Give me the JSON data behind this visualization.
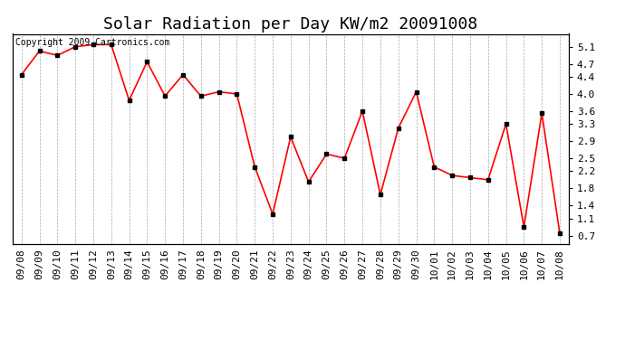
{
  "title": "Solar Radiation per Day KW/m2 20091008",
  "copyright_text": "Copyright 2009 Cartronics.com",
  "dates": [
    "09/08",
    "09/09",
    "09/10",
    "09/11",
    "09/12",
    "09/13",
    "09/14",
    "09/15",
    "09/16",
    "09/17",
    "09/18",
    "09/19",
    "09/20",
    "09/21",
    "09/22",
    "09/23",
    "09/24",
    "09/25",
    "09/26",
    "09/27",
    "09/28",
    "09/29",
    "09/30",
    "10/01",
    "10/02",
    "10/03",
    "10/04",
    "10/05",
    "10/06",
    "10/07",
    "10/08"
  ],
  "values": [
    4.45,
    5.0,
    4.9,
    5.1,
    5.15,
    5.15,
    3.85,
    4.75,
    3.95,
    4.45,
    3.95,
    4.05,
    4.0,
    2.3,
    1.2,
    3.0,
    1.95,
    2.6,
    2.5,
    3.6,
    1.65,
    3.2,
    4.05,
    2.3,
    2.1,
    2.05,
    2.0,
    3.3,
    0.9,
    3.55,
    0.75
  ],
  "line_color": "#ff0000",
  "marker": "s",
  "marker_color": "#000000",
  "marker_size": 3,
  "background_color": "#ffffff",
  "grid_color": "#aaaaaa",
  "ylim": [
    0.5,
    5.4
  ],
  "yticks": [
    0.7,
    1.1,
    1.4,
    1.8,
    2.2,
    2.5,
    2.9,
    3.3,
    3.6,
    4.0,
    4.4,
    4.7,
    5.1
  ],
  "title_fontsize": 13,
  "tick_fontsize": 8,
  "copyright_fontsize": 7
}
